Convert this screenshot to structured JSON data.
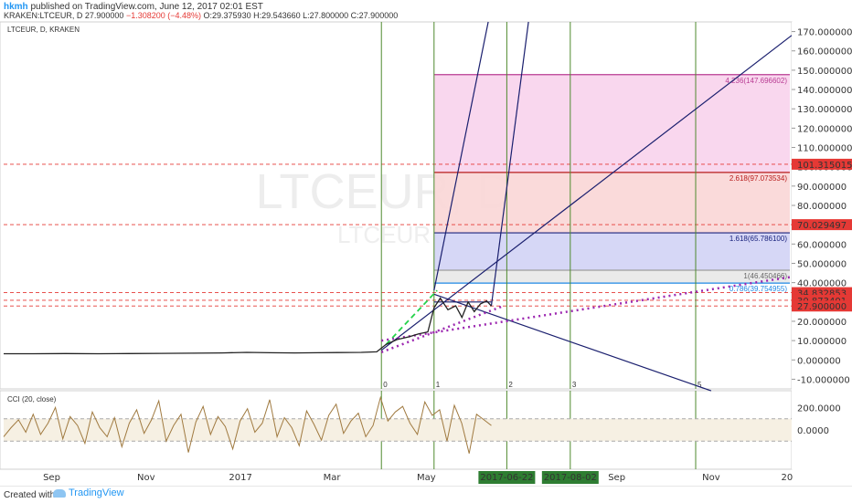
{
  "header": {
    "author": "hkmh",
    "published_text": "published on TradingView.com, June 12, 2017 02:01 EST",
    "symbol_line": "KRAKEN:LTCEUR, D",
    "last_value": "27.900000",
    "change_text": "−1.308200 (−4.48%)",
    "ohlc_text": "O:29.375930 H:29.543660 L:27.800000 C:27.900000"
  },
  "legend": {
    "title": "LTCEUR, D, KRAKEN"
  },
  "watermark": {
    "big": "LTCEUR, D",
    "small": "LTCEUR"
  },
  "indicator": {
    "title": "CCI (20, close)"
  },
  "footer": {
    "created_with": "Created with",
    "brand": "TradingView"
  },
  "colors": {
    "price_line": "#222222",
    "cci_line": "#a07a40",
    "fib_pink": "#f8d3ec",
    "fib_red": "#f9d6d6",
    "fib_blue": "#d2d3f5",
    "fib_grey": "#e8e8e8",
    "gann_line": "#1a1f6e",
    "vertical_green": "#4f8a2e",
    "price_label_red": "#e53935",
    "dotted_purple": "#9c27b0",
    "dashed_green": "#24d24a"
  },
  "chart_data": {
    "type": "line",
    "symbol": "LTCEUR",
    "ylim": [
      -15,
      175
    ],
    "y_ticks": [
      -10,
      0,
      10,
      20,
      30,
      40,
      50,
      60,
      70,
      80,
      90,
      100,
      110,
      120,
      130,
      140,
      150,
      160,
      170
    ],
    "y_tick_labels": [
      "-10.000000",
      "0.000000",
      "10.000000",
      "20.000000",
      "30.000000",
      "40.000000",
      "50.000000",
      "60.000000",
      "70.000000",
      "80.000000",
      "90.000000",
      "100.000000",
      "110.000000",
      "120.000000",
      "130.000000",
      "140.000000",
      "150.000000",
      "160.000000",
      "170.000000"
    ],
    "x_tick_labels": [
      {
        "label": "Sep",
        "date": "2016-09-01"
      },
      {
        "label": "Nov",
        "date": "2016-11-01"
      },
      {
        "label": "2017",
        "date": "2017-01-01"
      },
      {
        "label": "Mar",
        "date": "2017-03-01"
      },
      {
        "label": "May",
        "date": "2017-05-01"
      },
      {
        "label": "Sep",
        "date": "2017-09-01"
      },
      {
        "label": "Nov",
        "date": "2017-11-01"
      },
      {
        "label": "20",
        "date": "2017-12-20"
      }
    ],
    "highlighted_dates": [
      {
        "label": "2017-06-22",
        "date": "2017-06-22"
      },
      {
        "label": "2017-08-02",
        "date": "2017-08-02"
      }
    ],
    "price_series": {
      "dates": [
        "2016-08-01",
        "2016-08-20",
        "2016-09-10",
        "2016-10-01",
        "2016-10-20",
        "2016-11-10",
        "2016-12-01",
        "2016-12-20",
        "2017-01-05",
        "2017-01-20",
        "2017-02-05",
        "2017-02-20",
        "2017-03-05",
        "2017-03-20",
        "2017-03-30",
        "2017-04-05",
        "2017-04-12",
        "2017-04-20",
        "2017-04-26",
        "2017-05-02",
        "2017-05-06",
        "2017-05-10",
        "2017-05-15",
        "2017-05-20",
        "2017-05-24",
        "2017-05-28",
        "2017-06-01",
        "2017-06-05",
        "2017-06-09",
        "2017-06-12"
      ],
      "values": [
        3.2,
        3.2,
        3.3,
        3.2,
        3.3,
        3.4,
        3.5,
        3.6,
        3.9,
        3.7,
        3.6,
        3.7,
        3.8,
        3.9,
        4.2,
        8.0,
        10.5,
        12.0,
        13.5,
        14.5,
        27.0,
        32.0,
        26.0,
        28.0,
        22.0,
        30.0,
        25.0,
        29.0,
        30.5,
        27.9
      ]
    },
    "horizontal_levels": [
      {
        "value": 101.315015,
        "label": "101.315015",
        "style": "dashed-red"
      },
      {
        "value": 70.029497,
        "label": "70.029497",
        "style": "dashed-red"
      },
      {
        "value": 34.832853,
        "label": "34.832853",
        "style": "dashed-red"
      },
      {
        "value": 30.873401,
        "label": "30.873401",
        "style": "dashed-red"
      },
      {
        "value": 27.9,
        "label": "27.900000",
        "style": "dashed-red"
      }
    ],
    "fib_levels": [
      {
        "label": "4.236(147.696602)",
        "value": 147.696602
      },
      {
        "label": "2.618(97.073534)",
        "value": 97.073534
      },
      {
        "label": "1.618(65.786100)",
        "value": 65.7861
      },
      {
        "label": "1(46.450466)",
        "value": 46.450466
      },
      {
        "label": "0.786(39.754955)",
        "value": 39.754955
      }
    ],
    "fib_range": {
      "start_date": "2017-05-06",
      "end_date": "2017-12-20"
    },
    "vertical_lines": [
      {
        "label": "0",
        "date": "2017-04-02"
      },
      {
        "label": "1",
        "date": "2017-05-06"
      },
      {
        "label": "2",
        "date": "2017-06-22"
      },
      {
        "label": "3",
        "date": "2017-08-02"
      },
      {
        "label": "5",
        "date": "2017-10-22"
      }
    ],
    "cci": {
      "title": "CCI (20, close)",
      "ylim": [
        -350,
        350
      ],
      "y_ticks": [
        200,
        0
      ],
      "y_tick_labels": [
        "200.0000",
        "0.0000"
      ],
      "band": [
        -100,
        100
      ],
      "values": [
        -60,
        20,
        90,
        -20,
        140,
        -40,
        60,
        200,
        -80,
        120,
        40,
        -120,
        160,
        20,
        -60,
        110,
        -150,
        60,
        180,
        -30,
        90,
        260,
        -100,
        40,
        140,
        -200,
        70,
        210,
        -40,
        120,
        30,
        -170,
        80,
        190,
        -20,
        60,
        270,
        -60,
        110,
        20,
        -140,
        170,
        50,
        -90,
        130,
        230,
        -30,
        80,
        150,
        -60,
        40,
        290,
        80,
        160,
        210,
        60,
        -40,
        250,
        130,
        180,
        -100,
        220,
        60,
        -210,
        140,
        90,
        40
      ]
    }
  }
}
